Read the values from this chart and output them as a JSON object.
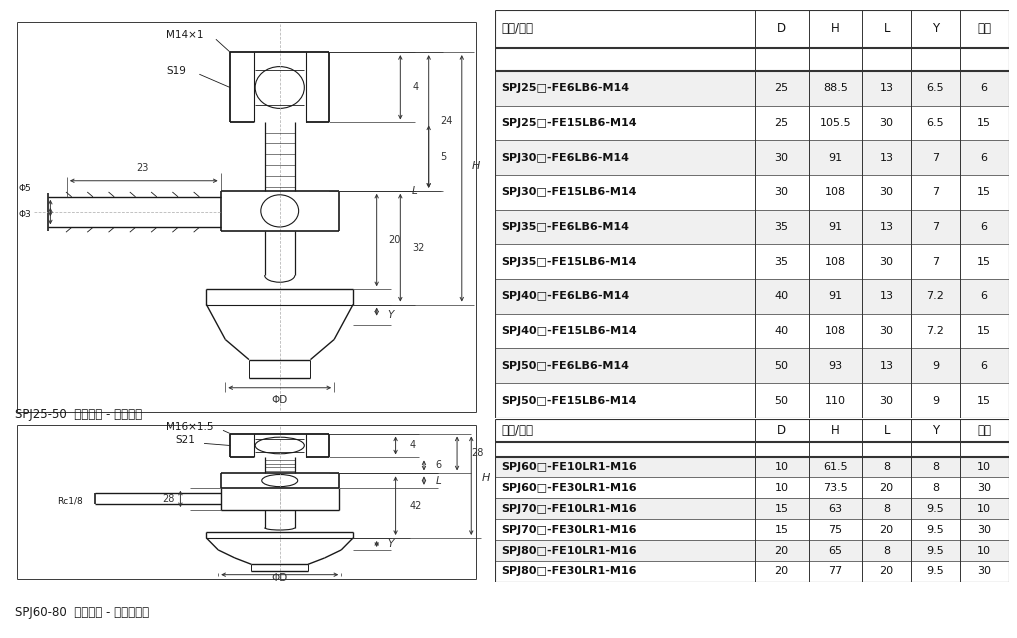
{
  "table1_headers": [
    "型号/尺寸",
    "D",
    "H",
    "L",
    "Y",
    "行程"
  ],
  "table1_rows": [
    [
      "SPJ25□-FE6LB6-M14",
      "25",
      "88.5",
      "13",
      "6.5",
      "6"
    ],
    [
      "SPJ25□-FE15LB6-M14",
      "25",
      "105.5",
      "30",
      "6.5",
      "15"
    ],
    [
      "SPJ30□-FE6LB6-M14",
      "30",
      "91",
      "13",
      "7",
      "6"
    ],
    [
      "SPJ30□-FE15LB6-M14",
      "30",
      "108",
      "30",
      "7",
      "15"
    ],
    [
      "SPJ35□-FE6LB6-M14",
      "35",
      "91",
      "13",
      "7",
      "6"
    ],
    [
      "SPJ35□-FE15LB6-M14",
      "35",
      "108",
      "30",
      "7",
      "15"
    ],
    [
      "SPJ40□-FE6LB6-M14",
      "40",
      "91",
      "13",
      "7.2",
      "6"
    ],
    [
      "SPJ40□-FE15LB6-M14",
      "40",
      "108",
      "30",
      "7.2",
      "15"
    ],
    [
      "SPJ50□-FE6LB6-M14",
      "50",
      "93",
      "13",
      "9",
      "6"
    ],
    [
      "SPJ50□-FE15LB6-M14",
      "50",
      "110",
      "30",
      "9",
      "15"
    ]
  ],
  "table2_headers": [
    "型号/尺寸",
    "D",
    "H",
    "L",
    "Y",
    "行程"
  ],
  "table2_rows": [
    [
      "SPJ60□-FE10LR1-M16",
      "10",
      "61.5",
      "8",
      "8",
      "10"
    ],
    [
      "SPJ60□-FE30LR1-M16",
      "10",
      "73.5",
      "20",
      "8",
      "30"
    ],
    [
      "SPJ70□-FE10LR1-M16",
      "15",
      "63",
      "8",
      "9.5",
      "10"
    ],
    [
      "SPJ70□-FE30LR1-M16",
      "15",
      "75",
      "20",
      "9.5",
      "30"
    ],
    [
      "SPJ80□-FE10LR1-M16",
      "20",
      "65",
      "8",
      "9.5",
      "10"
    ],
    [
      "SPJ80□-FE30LR1-M16",
      "20",
      "77",
      "20",
      "9.5",
      "30"
    ]
  ],
  "label1": "SPJ25-50  水平方向 - 宝塔接头",
  "label2": "SPJ60-80  水平方向 - 内螺纹连接",
  "bg_color": "#ffffff",
  "line_color": "#1a1a1a",
  "dim_color": "#333333",
  "alt_row_bg": "#f0f0f0"
}
